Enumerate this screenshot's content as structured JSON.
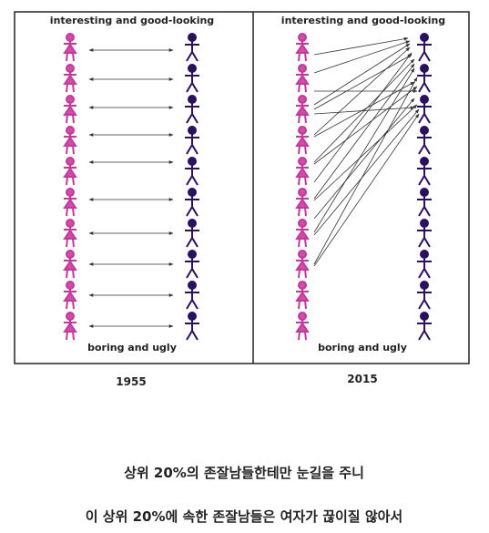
{
  "panels": [
    {
      "top_label": "interesting and good-looking",
      "bottom_label": "boring and ugly",
      "year": "1955"
    },
    {
      "top_label": "interesting and good-looking",
      "bottom_label": "boring and ugly",
      "year": "2015"
    }
  ],
  "captions": [
    "상위 20%의 존잘남들한테만 눈길을 주니",
    "이 상위 20%에 속한 존잘남들은 여자가 끊이질 않아서"
  ]
}
